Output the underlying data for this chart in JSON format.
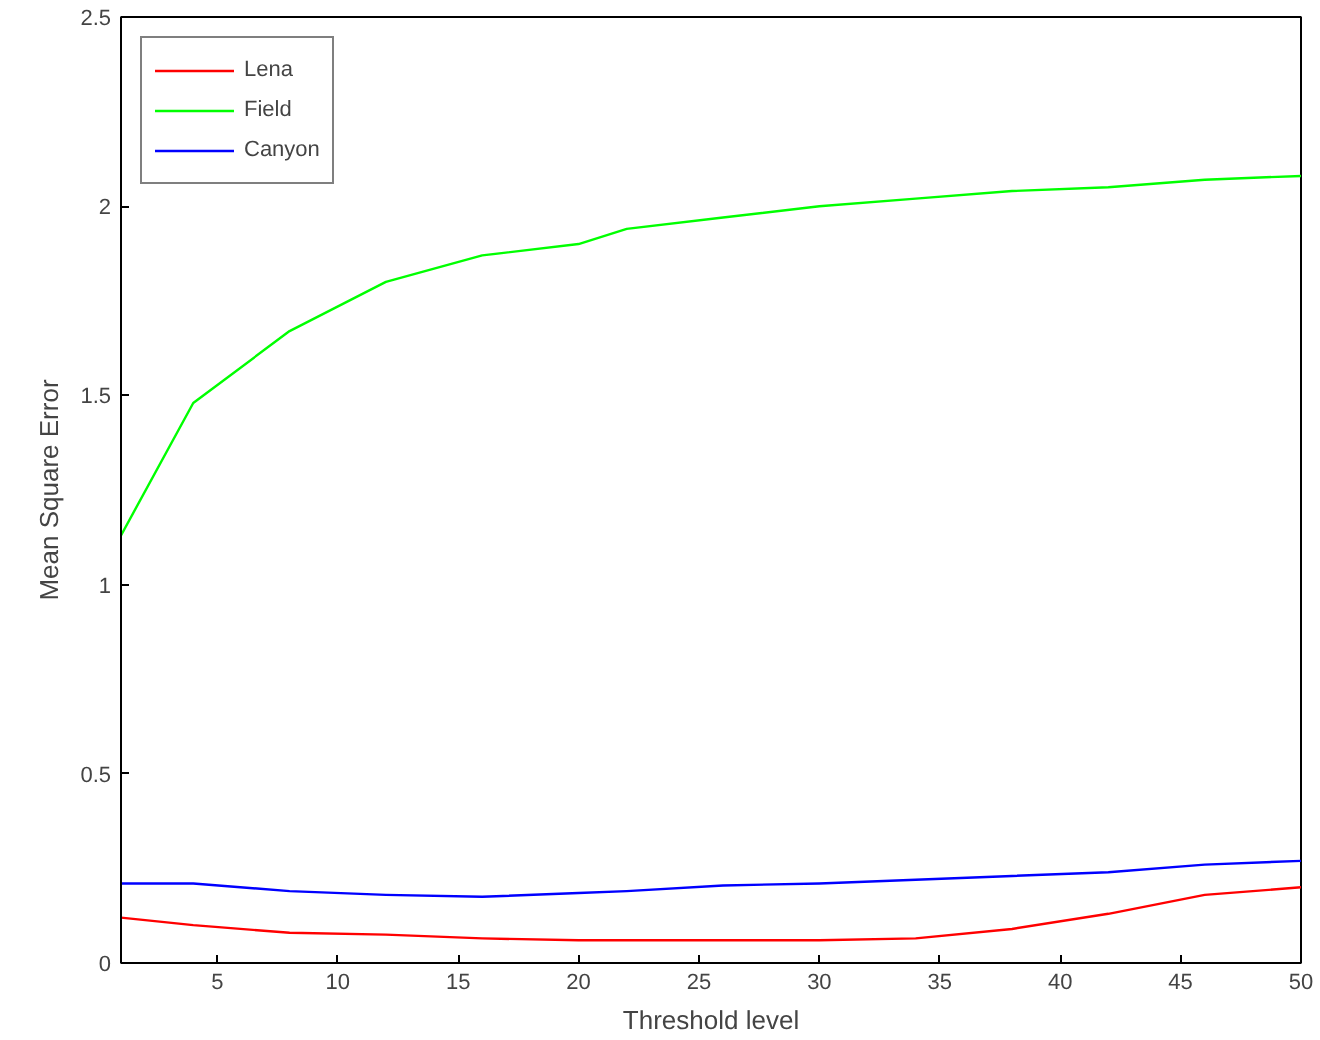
{
  "chart_data": {
    "type": "line",
    "xlabel": "Threshold level",
    "ylabel": "Mean Square Error",
    "x": [
      1,
      4,
      8,
      12,
      16,
      20,
      22,
      26,
      30,
      34,
      38,
      42,
      46,
      50
    ],
    "series": [
      {
        "name": "Lena",
        "color": "#ff0000",
        "values": [
          0.12,
          0.1,
          0.08,
          0.075,
          0.065,
          0.06,
          0.06,
          0.06,
          0.06,
          0.065,
          0.09,
          0.13,
          0.18,
          0.2
        ]
      },
      {
        "name": "Field",
        "color": "#00ff00",
        "values": [
          1.13,
          1.48,
          1.67,
          1.8,
          1.87,
          1.9,
          1.94,
          1.97,
          2.0,
          2.02,
          2.04,
          2.05,
          2.07,
          2.08
        ]
      },
      {
        "name": "Canyon",
        "color": "#0000ff",
        "values": [
          0.21,
          0.21,
          0.19,
          0.18,
          0.175,
          0.185,
          0.19,
          0.205,
          0.21,
          0.22,
          0.23,
          0.24,
          0.26,
          0.27
        ]
      }
    ],
    "xlim": [
      1,
      50
    ],
    "xticks": [
      5,
      10,
      15,
      20,
      25,
      30,
      35,
      40,
      45,
      50
    ],
    "ylim": [
      0,
      2.5
    ],
    "yticks": [
      0,
      0.5,
      1,
      1.5,
      2,
      2.5
    ],
    "grid": false,
    "legend": "top left",
    "marker": "none",
    "line_style": "solid"
  }
}
